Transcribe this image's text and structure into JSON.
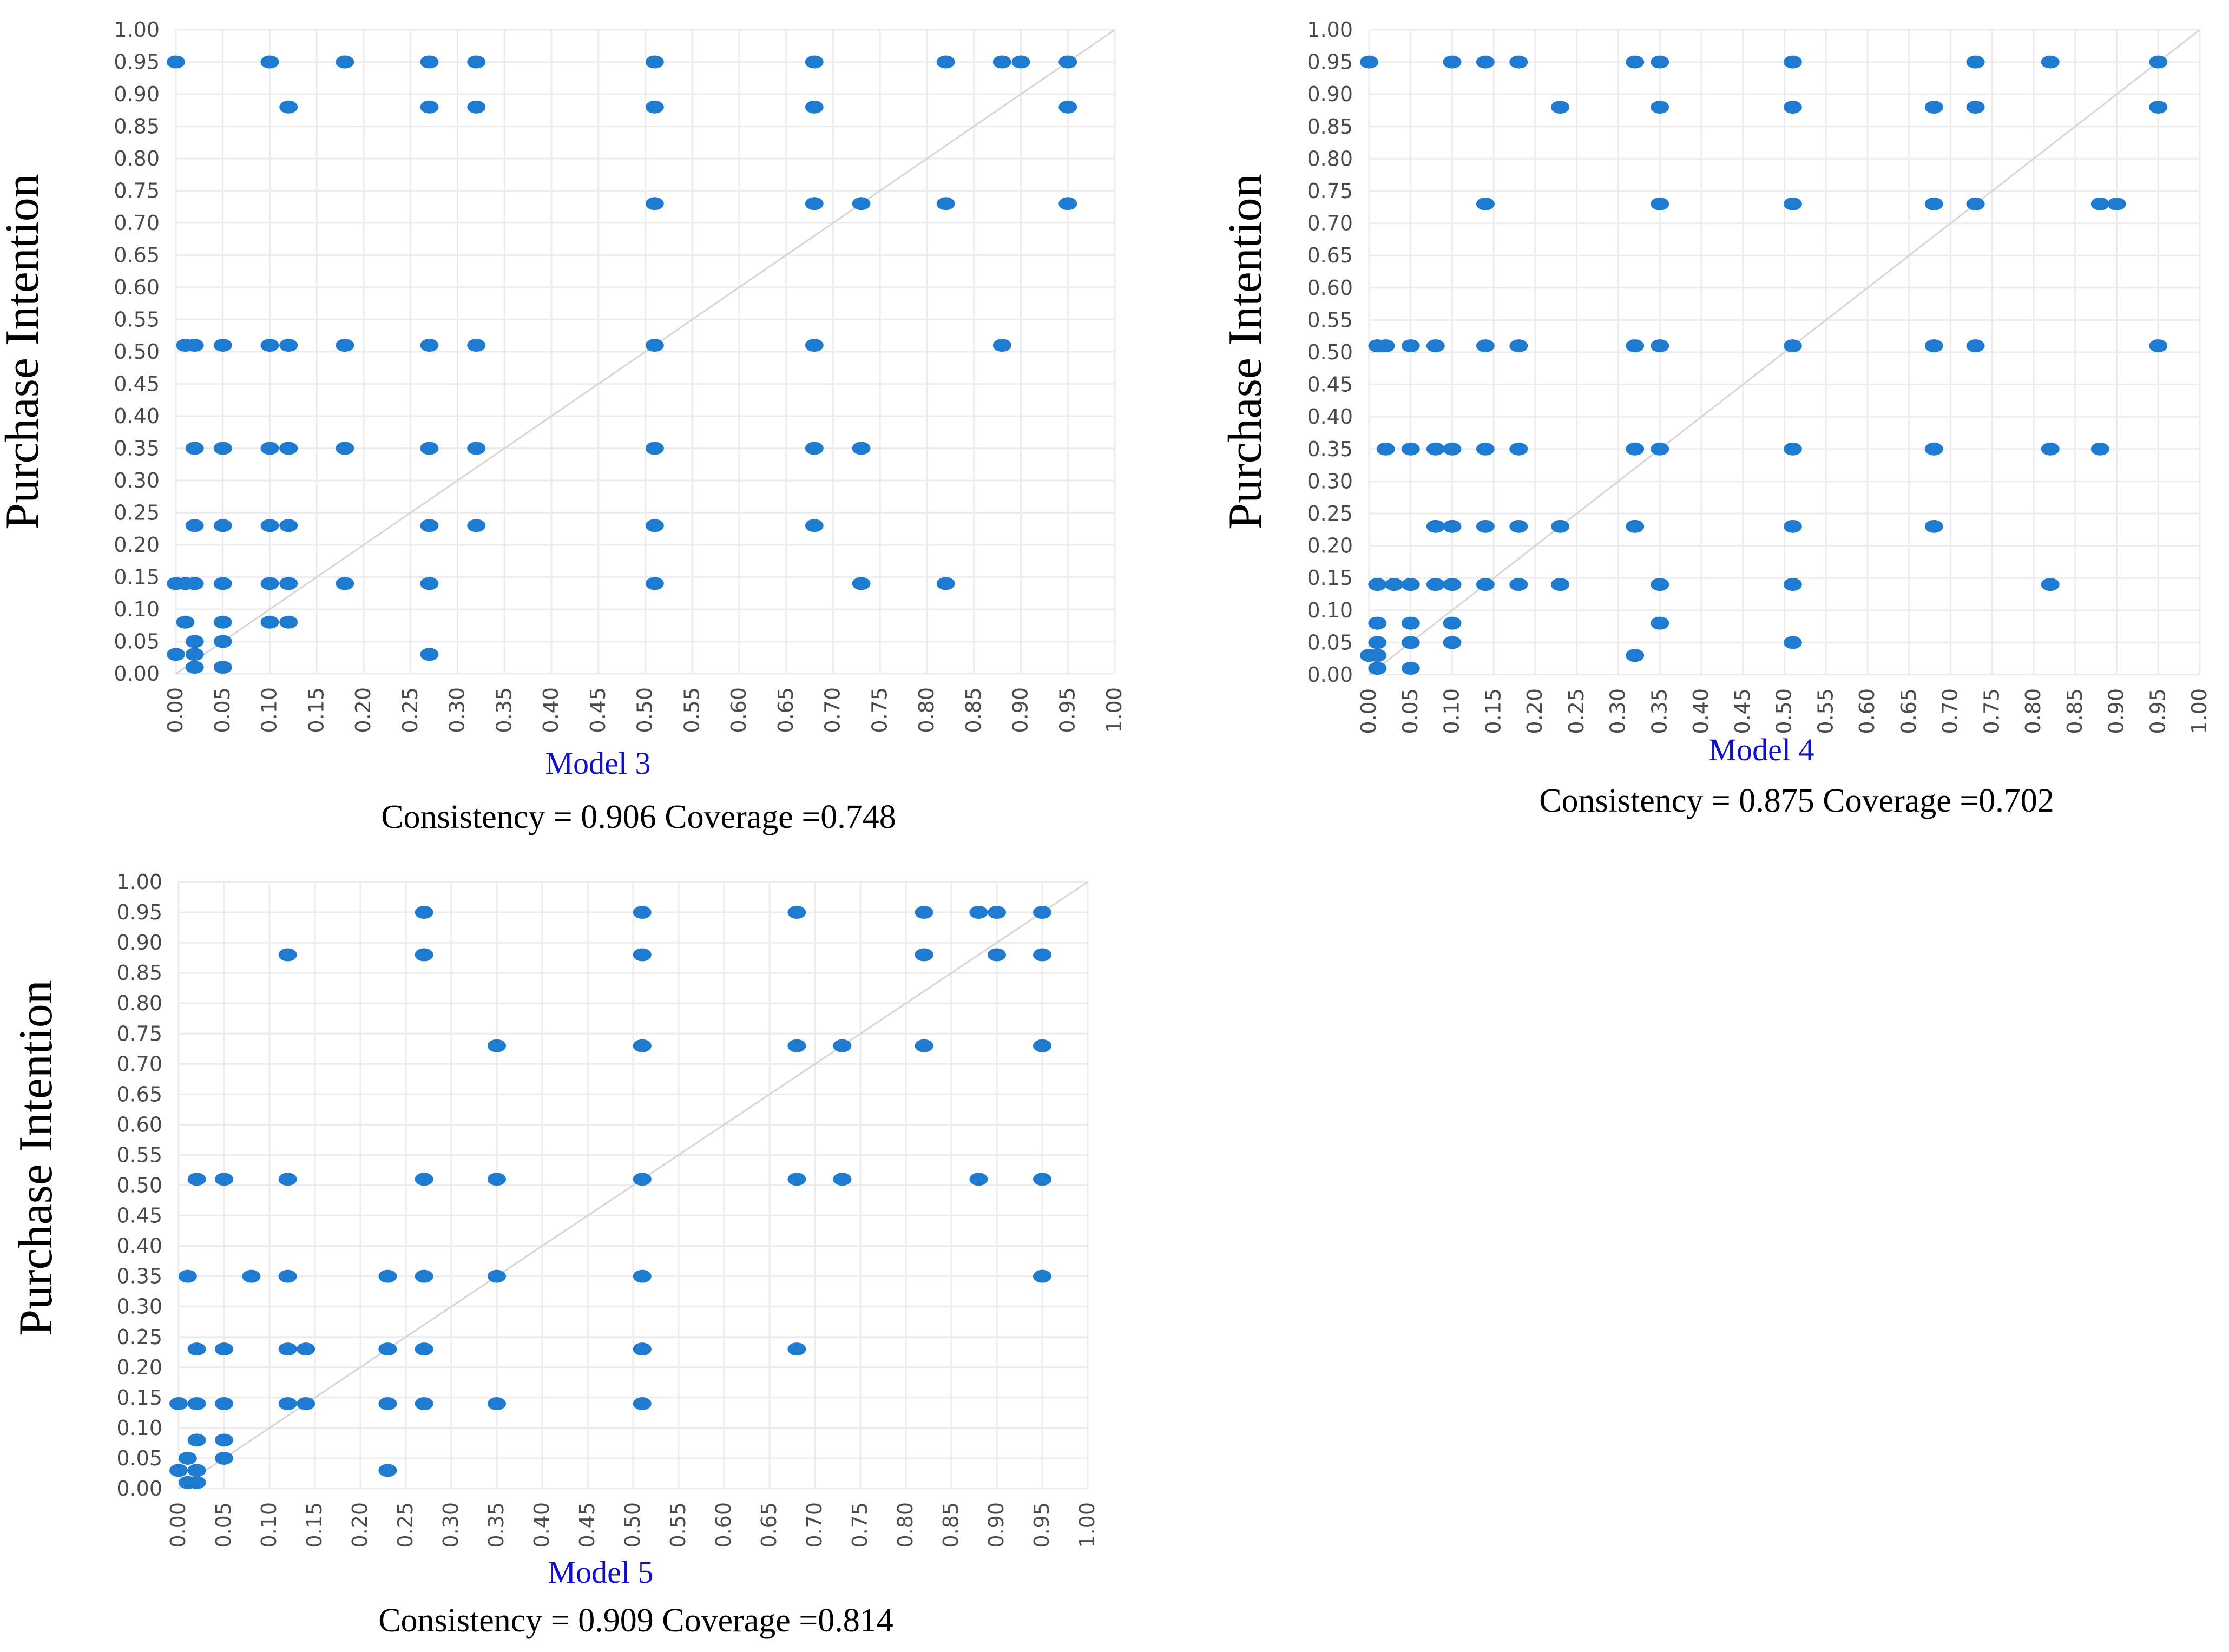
{
  "chart_data": [
    {
      "type": "scatter",
      "name": "model-3",
      "title": "Model 3",
      "caption": "Consistency = 0.906  Coverage =0.748",
      "xlabel": "",
      "ylabel": "Purchase Intention",
      "xlim": [
        0,
        1
      ],
      "ylim": [
        0,
        1
      ],
      "grid": true,
      "diagonal": true,
      "xticks": [
        "0.00",
        "0.05",
        "0.10",
        "0.15",
        "0.20",
        "0.25",
        "0.30",
        "0.35",
        "0.40",
        "0.45",
        "0.50",
        "0.55",
        "0.60",
        "0.65",
        "0.70",
        "0.75",
        "0.80",
        "0.85",
        "0.90",
        "0.95",
        "1.00"
      ],
      "yticks": [
        "0.00",
        "0.05",
        "0.10",
        "0.15",
        "0.20",
        "0.25",
        "0.30",
        "0.35",
        "0.40",
        "0.45",
        "0.50",
        "0.55",
        "0.60",
        "0.65",
        "0.70",
        "0.75",
        "0.80",
        "0.85",
        "0.90",
        "0.95",
        "1.00"
      ],
      "points": [
        [
          0.0,
          0.95
        ],
        [
          0.1,
          0.95
        ],
        [
          0.18,
          0.95
        ],
        [
          0.27,
          0.95
        ],
        [
          0.32,
          0.95
        ],
        [
          0.51,
          0.95
        ],
        [
          0.68,
          0.95
        ],
        [
          0.82,
          0.95
        ],
        [
          0.88,
          0.95
        ],
        [
          0.9,
          0.95
        ],
        [
          0.95,
          0.95
        ],
        [
          0.12,
          0.88
        ],
        [
          0.27,
          0.88
        ],
        [
          0.32,
          0.88
        ],
        [
          0.51,
          0.88
        ],
        [
          0.68,
          0.88
        ],
        [
          0.95,
          0.88
        ],
        [
          0.51,
          0.73
        ],
        [
          0.68,
          0.73
        ],
        [
          0.73,
          0.73
        ],
        [
          0.82,
          0.73
        ],
        [
          0.95,
          0.73
        ],
        [
          0.01,
          0.51
        ],
        [
          0.02,
          0.51
        ],
        [
          0.05,
          0.51
        ],
        [
          0.1,
          0.51
        ],
        [
          0.12,
          0.51
        ],
        [
          0.18,
          0.51
        ],
        [
          0.27,
          0.51
        ],
        [
          0.32,
          0.51
        ],
        [
          0.51,
          0.51
        ],
        [
          0.68,
          0.51
        ],
        [
          0.88,
          0.51
        ],
        [
          0.02,
          0.35
        ],
        [
          0.05,
          0.35
        ],
        [
          0.1,
          0.35
        ],
        [
          0.12,
          0.35
        ],
        [
          0.18,
          0.35
        ],
        [
          0.27,
          0.35
        ],
        [
          0.32,
          0.35
        ],
        [
          0.51,
          0.35
        ],
        [
          0.68,
          0.35
        ],
        [
          0.73,
          0.35
        ],
        [
          0.02,
          0.23
        ],
        [
          0.05,
          0.23
        ],
        [
          0.1,
          0.23
        ],
        [
          0.12,
          0.23
        ],
        [
          0.27,
          0.23
        ],
        [
          0.32,
          0.23
        ],
        [
          0.51,
          0.23
        ],
        [
          0.68,
          0.23
        ],
        [
          0.0,
          0.14
        ],
        [
          0.01,
          0.14
        ],
        [
          0.02,
          0.14
        ],
        [
          0.05,
          0.14
        ],
        [
          0.1,
          0.14
        ],
        [
          0.12,
          0.14
        ],
        [
          0.18,
          0.14
        ],
        [
          0.27,
          0.14
        ],
        [
          0.51,
          0.14
        ],
        [
          0.73,
          0.14
        ],
        [
          0.82,
          0.14
        ],
        [
          0.01,
          0.08
        ],
        [
          0.05,
          0.08
        ],
        [
          0.1,
          0.08
        ],
        [
          0.12,
          0.08
        ],
        [
          0.02,
          0.05
        ],
        [
          0.05,
          0.05
        ],
        [
          0.0,
          0.03
        ],
        [
          0.02,
          0.03
        ],
        [
          0.27,
          0.03
        ],
        [
          0.02,
          0.01
        ],
        [
          0.05,
          0.01
        ]
      ]
    },
    {
      "type": "scatter",
      "name": "model-4",
      "title": "Model 4",
      "caption": "Consistency = 0.875  Coverage =0.702",
      "xlabel": "",
      "ylabel": "Purchase Intention",
      "xlim": [
        0,
        1
      ],
      "ylim": [
        0,
        1
      ],
      "grid": true,
      "diagonal": true,
      "xticks": [
        "0.00",
        "0.05",
        "0.10",
        "0.15",
        "0.20",
        "0.25",
        "0.30",
        "0.35",
        "0.40",
        "0.45",
        "0.50",
        "0.55",
        "0.60",
        "0.65",
        "0.70",
        "0.75",
        "0.80",
        "0.85",
        "0.90",
        "0.95",
        "1.00"
      ],
      "yticks": [
        "0.00",
        "0.05",
        "0.10",
        "0.15",
        "0.20",
        "0.25",
        "0.30",
        "0.35",
        "0.40",
        "0.45",
        "0.50",
        "0.55",
        "0.60",
        "0.65",
        "0.70",
        "0.75",
        "0.80",
        "0.85",
        "0.90",
        "0.95",
        "1.00"
      ],
      "points": [
        [
          0.0,
          0.95
        ],
        [
          0.1,
          0.95
        ],
        [
          0.14,
          0.95
        ],
        [
          0.18,
          0.95
        ],
        [
          0.32,
          0.95
        ],
        [
          0.35,
          0.95
        ],
        [
          0.51,
          0.95
        ],
        [
          0.73,
          0.95
        ],
        [
          0.82,
          0.95
        ],
        [
          0.95,
          0.95
        ],
        [
          0.23,
          0.88
        ],
        [
          0.35,
          0.88
        ],
        [
          0.51,
          0.88
        ],
        [
          0.68,
          0.88
        ],
        [
          0.73,
          0.88
        ],
        [
          0.95,
          0.88
        ],
        [
          0.14,
          0.73
        ],
        [
          0.35,
          0.73
        ],
        [
          0.51,
          0.73
        ],
        [
          0.68,
          0.73
        ],
        [
          0.73,
          0.73
        ],
        [
          0.88,
          0.73
        ],
        [
          0.9,
          0.73
        ],
        [
          0.01,
          0.51
        ],
        [
          0.02,
          0.51
        ],
        [
          0.05,
          0.51
        ],
        [
          0.08,
          0.51
        ],
        [
          0.14,
          0.51
        ],
        [
          0.18,
          0.51
        ],
        [
          0.32,
          0.51
        ],
        [
          0.35,
          0.51
        ],
        [
          0.51,
          0.51
        ],
        [
          0.68,
          0.51
        ],
        [
          0.73,
          0.51
        ],
        [
          0.95,
          0.51
        ],
        [
          0.02,
          0.35
        ],
        [
          0.05,
          0.35
        ],
        [
          0.08,
          0.35
        ],
        [
          0.1,
          0.35
        ],
        [
          0.14,
          0.35
        ],
        [
          0.18,
          0.35
        ],
        [
          0.32,
          0.35
        ],
        [
          0.35,
          0.35
        ],
        [
          0.51,
          0.35
        ],
        [
          0.68,
          0.35
        ],
        [
          0.82,
          0.35
        ],
        [
          0.88,
          0.35
        ],
        [
          0.08,
          0.23
        ],
        [
          0.1,
          0.23
        ],
        [
          0.14,
          0.23
        ],
        [
          0.18,
          0.23
        ],
        [
          0.23,
          0.23
        ],
        [
          0.32,
          0.23
        ],
        [
          0.51,
          0.23
        ],
        [
          0.68,
          0.23
        ],
        [
          0.01,
          0.14
        ],
        [
          0.03,
          0.14
        ],
        [
          0.05,
          0.14
        ],
        [
          0.08,
          0.14
        ],
        [
          0.1,
          0.14
        ],
        [
          0.14,
          0.14
        ],
        [
          0.18,
          0.14
        ],
        [
          0.23,
          0.14
        ],
        [
          0.35,
          0.14
        ],
        [
          0.51,
          0.14
        ],
        [
          0.82,
          0.14
        ],
        [
          0.01,
          0.08
        ],
        [
          0.05,
          0.08
        ],
        [
          0.1,
          0.08
        ],
        [
          0.35,
          0.08
        ],
        [
          0.01,
          0.05
        ],
        [
          0.05,
          0.05
        ],
        [
          0.1,
          0.05
        ],
        [
          0.51,
          0.05
        ],
        [
          0.0,
          0.03
        ],
        [
          0.01,
          0.03
        ],
        [
          0.32,
          0.03
        ],
        [
          0.01,
          0.01
        ],
        [
          0.05,
          0.01
        ]
      ]
    },
    {
      "type": "scatter",
      "name": "model-5",
      "title": "Model 5",
      "caption": "Consistency = 0.909 Coverage =0.814",
      "xlabel": "",
      "ylabel": "Purchase Intention",
      "xlim": [
        0,
        1
      ],
      "ylim": [
        0,
        1
      ],
      "grid": true,
      "diagonal": true,
      "xticks": [
        "0.00",
        "0.05",
        "0.10",
        "0.15",
        "0.20",
        "0.25",
        "0.30",
        "0.35",
        "0.40",
        "0.45",
        "0.50",
        "0.55",
        "0.60",
        "0.65",
        "0.70",
        "0.75",
        "0.80",
        "0.85",
        "0.90",
        "0.95",
        "1.00"
      ],
      "yticks": [
        "0.00",
        "0.05",
        "0.10",
        "0.15",
        "0.20",
        "0.25",
        "0.30",
        "0.35",
        "0.40",
        "0.45",
        "0.50",
        "0.55",
        "0.60",
        "0.65",
        "0.70",
        "0.75",
        "0.80",
        "0.85",
        "0.90",
        "0.95",
        "1.00"
      ],
      "points": [
        [
          0.27,
          0.95
        ],
        [
          0.51,
          0.95
        ],
        [
          0.68,
          0.95
        ],
        [
          0.82,
          0.95
        ],
        [
          0.88,
          0.95
        ],
        [
          0.9,
          0.95
        ],
        [
          0.95,
          0.95
        ],
        [
          0.12,
          0.88
        ],
        [
          0.27,
          0.88
        ],
        [
          0.51,
          0.88
        ],
        [
          0.82,
          0.88
        ],
        [
          0.9,
          0.88
        ],
        [
          0.95,
          0.88
        ],
        [
          0.35,
          0.73
        ],
        [
          0.51,
          0.73
        ],
        [
          0.68,
          0.73
        ],
        [
          0.73,
          0.73
        ],
        [
          0.82,
          0.73
        ],
        [
          0.95,
          0.73
        ],
        [
          0.02,
          0.51
        ],
        [
          0.05,
          0.51
        ],
        [
          0.12,
          0.51
        ],
        [
          0.27,
          0.51
        ],
        [
          0.35,
          0.51
        ],
        [
          0.51,
          0.51
        ],
        [
          0.68,
          0.51
        ],
        [
          0.73,
          0.51
        ],
        [
          0.88,
          0.51
        ],
        [
          0.95,
          0.51
        ],
        [
          0.01,
          0.35
        ],
        [
          0.08,
          0.35
        ],
        [
          0.12,
          0.35
        ],
        [
          0.23,
          0.35
        ],
        [
          0.27,
          0.35
        ],
        [
          0.35,
          0.35
        ],
        [
          0.51,
          0.35
        ],
        [
          0.95,
          0.35
        ],
        [
          0.02,
          0.23
        ],
        [
          0.05,
          0.23
        ],
        [
          0.12,
          0.23
        ],
        [
          0.14,
          0.23
        ],
        [
          0.23,
          0.23
        ],
        [
          0.27,
          0.23
        ],
        [
          0.51,
          0.23
        ],
        [
          0.68,
          0.23
        ],
        [
          0.0,
          0.14
        ],
        [
          0.02,
          0.14
        ],
        [
          0.05,
          0.14
        ],
        [
          0.12,
          0.14
        ],
        [
          0.14,
          0.14
        ],
        [
          0.23,
          0.14
        ],
        [
          0.27,
          0.14
        ],
        [
          0.35,
          0.14
        ],
        [
          0.51,
          0.14
        ],
        [
          0.02,
          0.08
        ],
        [
          0.05,
          0.08
        ],
        [
          0.01,
          0.05
        ],
        [
          0.05,
          0.05
        ],
        [
          0.0,
          0.03
        ],
        [
          0.02,
          0.03
        ],
        [
          0.23,
          0.03
        ],
        [
          0.01,
          0.01
        ],
        [
          0.02,
          0.01
        ]
      ]
    }
  ],
  "colors": {
    "point": "#1f7bcf",
    "grid": "#ececec",
    "diagonal": "#d6d6d6",
    "tick_text": "#4a4a4a",
    "model_title": "#1010cc",
    "text": "#000000"
  }
}
